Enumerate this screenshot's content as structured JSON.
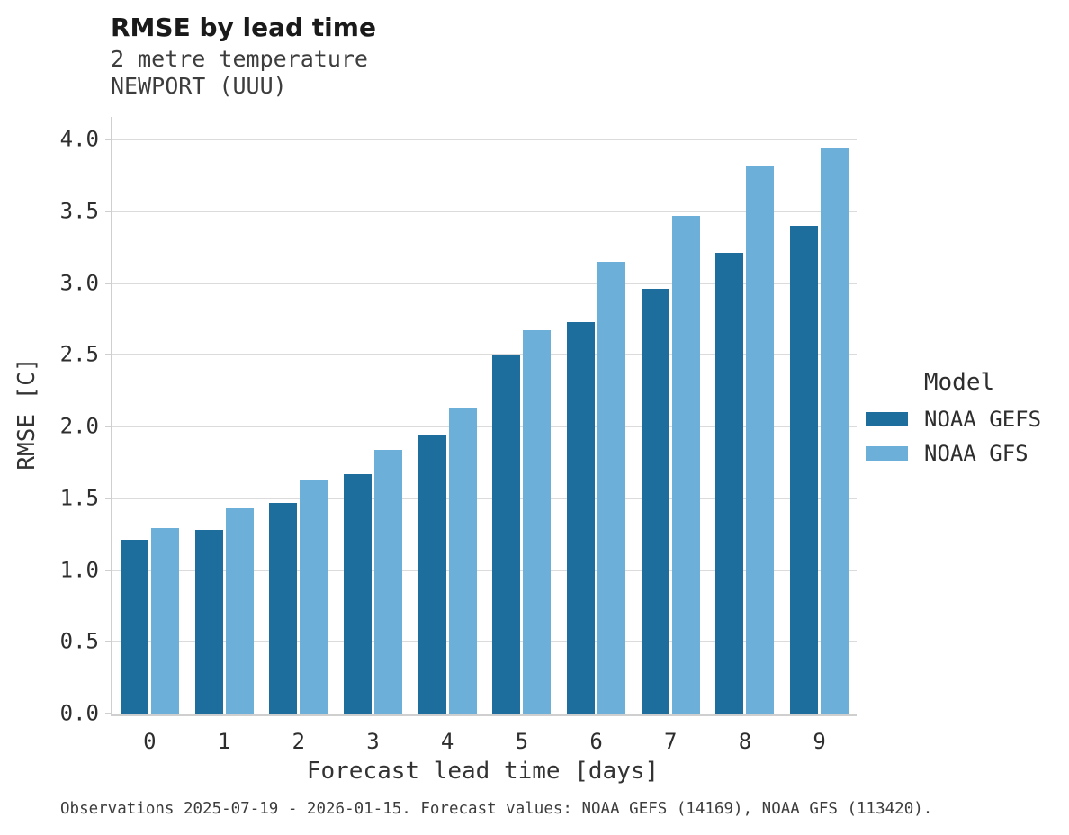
{
  "header": {
    "title": "RMSE by lead time",
    "subtitle_line1": "2 metre temperature",
    "subtitle_line2": "NEWPORT (UUU)"
  },
  "chart_data": {
    "type": "bar",
    "title": "RMSE by lead time",
    "subtitle": [
      "2 metre temperature",
      "NEWPORT (UUU)"
    ],
    "xlabel": "Forecast lead time [days]",
    "ylabel": "RMSE [C]",
    "categories": [
      "0",
      "1",
      "2",
      "3",
      "4",
      "5",
      "6",
      "7",
      "8",
      "9"
    ],
    "series": [
      {
        "name": "NOAA GEFS",
        "color": "#1d6e9c",
        "values": [
          1.21,
          1.28,
          1.47,
          1.67,
          1.94,
          2.5,
          2.73,
          2.96,
          3.21,
          3.4
        ]
      },
      {
        "name": "NOAA GFS",
        "color": "#6cb0d9",
        "values": [
          1.29,
          1.43,
          1.63,
          1.84,
          2.13,
          2.67,
          3.15,
          3.47,
          3.81,
          3.94
        ]
      }
    ],
    "ylim": [
      0.0,
      4.0
    ],
    "yticks": [
      "0.0",
      "0.5",
      "1.0",
      "1.5",
      "2.0",
      "2.5",
      "3.0",
      "3.5",
      "4.0"
    ],
    "grid": "horizontal",
    "legend_title": "Model",
    "legend_position": "right"
  },
  "footer": {
    "caption": "Observations 2025-07-19 - 2026-01-15. Forecast values: NOAA GEFS (14169), NOAA GFS (113420)."
  }
}
